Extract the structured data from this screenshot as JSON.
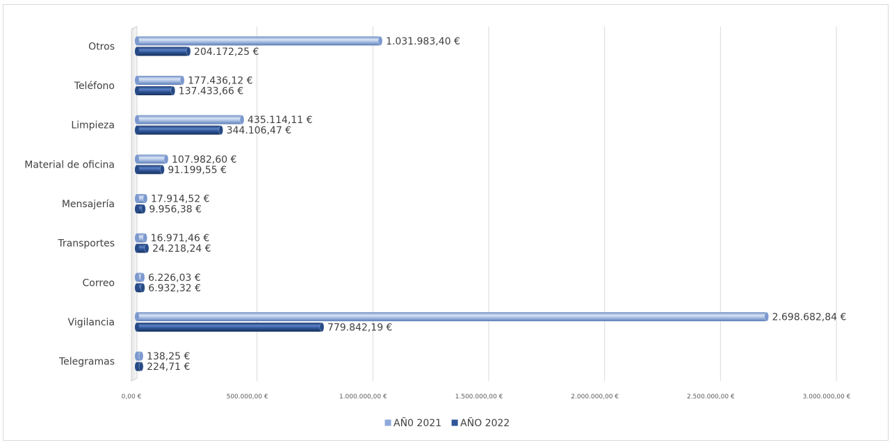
{
  "chart_data": {
    "type": "bar",
    "orientation": "horizontal",
    "categories": [
      "Otros",
      "Teléfono",
      "Limpieza",
      "Material de oficina",
      "Mensajería",
      "Transportes",
      "Correo",
      "Vigilancia",
      "Telegramas"
    ],
    "series": [
      {
        "name": "AÑ0 2021",
        "color": "#8eaadb",
        "values": [
          1031983.4,
          177436.12,
          435114.11,
          107982.6,
          17914.52,
          16971.46,
          6226.03,
          2698682.84,
          138.25
        ],
        "labels": [
          "1.031.983,40 €",
          "177.436,12 €",
          "435.114,11 €",
          "107.982,60 €",
          "17.914,52 €",
          "16.971,46 €",
          "6.226,03 €",
          "2.698.682,84 €",
          "138,25 €"
        ]
      },
      {
        "name": "AÑO 2022",
        "color": "#2f5597",
        "values": [
          204172.25,
          137433.66,
          344106.47,
          91199.55,
          9956.38,
          24218.24,
          6932.32,
          779842.19,
          224.71
        ],
        "labels": [
          "204.172,25 €",
          "137.433,66 €",
          "344.106,47 €",
          "91.199,55 €",
          "9.956,38 €",
          "24.218,24 €",
          "6.932,32 €",
          "779.842,19 €",
          "224,71 €"
        ]
      }
    ],
    "xlim": [
      0,
      3000000
    ],
    "xticks": [
      0,
      500000,
      1000000,
      1500000,
      2000000,
      2500000,
      3000000
    ],
    "xtick_labels": [
      "0,00 €",
      "500.000,00 €",
      "1.000.000,00 €",
      "1.500.000,00 €",
      "2.000.000,00 €",
      "2.500.000,00 €",
      "3.000.000,00 €"
    ],
    "grid": true,
    "legend_position": "bottom"
  }
}
